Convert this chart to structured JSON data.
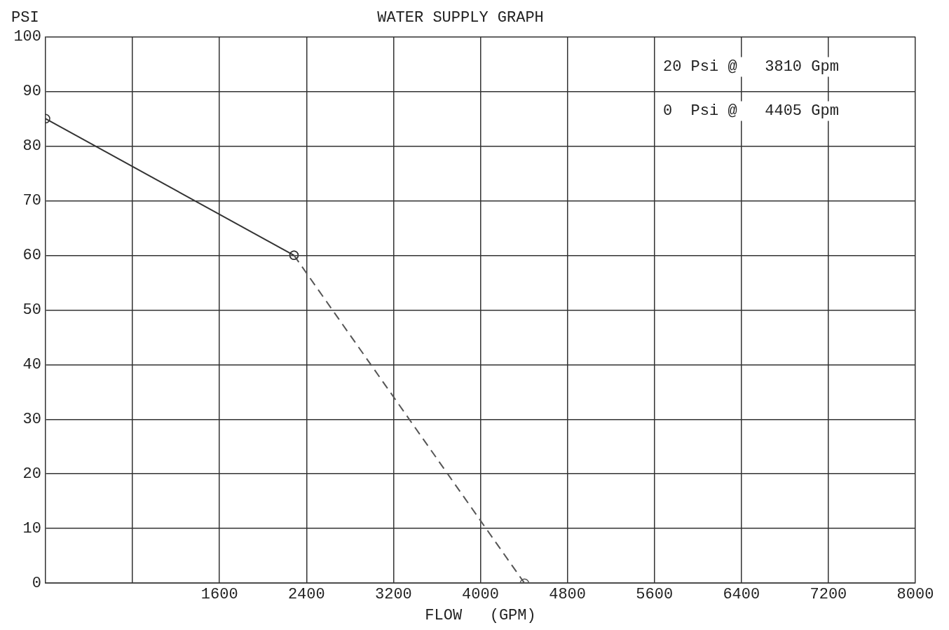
{
  "chart_data": {
    "type": "line",
    "title": "WATER SUPPLY GRAPH",
    "xlabel": "FLOW   (GPM)",
    "ylabel": "PSI",
    "xlim": [
      0,
      8000
    ],
    "xticks": [
      {
        "value": 800,
        "label": null
      },
      1600,
      2400,
      3200,
      4000,
      4800,
      5600,
      6400,
      7200,
      8000
    ],
    "ylim": [
      0,
      100
    ],
    "yticks": [
      0,
      10,
      20,
      30,
      40,
      50,
      60,
      70,
      80,
      90,
      100
    ],
    "grid": true,
    "legend": false,
    "marker": "circle",
    "series": [
      {
        "color": "#333333",
        "line_style": "solid",
        "x": [
          0,
          2285
        ],
        "values": [
          85,
          60
        ]
      },
      {
        "color": "#555555",
        "line_style": "dashed",
        "x": [
          2285,
          4405
        ],
        "values": [
          60,
          0
        ]
      }
    ],
    "annotations": [
      "20 Psi @   3810 Gpm",
      "0  Psi @   4405 Gpm"
    ]
  }
}
